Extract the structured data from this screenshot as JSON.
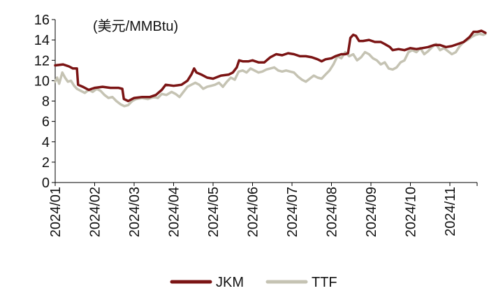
{
  "chart_data": {
    "type": "line",
    "unit_label": "(美元/MMBtu)",
    "ylim": [
      0,
      16
    ],
    "yticks": [
      "0",
      "2",
      "4",
      "6",
      "8",
      "10",
      "12",
      "14",
      "16"
    ],
    "categories": [
      "2024/01",
      "2024/02",
      "2024/03",
      "2024/04",
      "2024/05",
      "2024/06",
      "2024/07",
      "2024/08",
      "2024/09",
      "2024/10",
      "2024/11"
    ],
    "grid": false,
    "legend_position": "bottom",
    "x_start": 0,
    "x_end": 10.9,
    "colors": {
      "JKM": "#7b1414",
      "TTF": "#c5c3b3"
    },
    "series": [
      {
        "name": "JKM",
        "points": [
          [
            0.0,
            11.5
          ],
          [
            0.2,
            11.6
          ],
          [
            0.35,
            11.4
          ],
          [
            0.45,
            11.2
          ],
          [
            0.55,
            11.2
          ],
          [
            0.58,
            9.6
          ],
          [
            0.7,
            9.4
          ],
          [
            0.85,
            9.1
          ],
          [
            1.0,
            9.3
          ],
          [
            1.2,
            9.4
          ],
          [
            1.4,
            9.3
          ],
          [
            1.6,
            9.3
          ],
          [
            1.7,
            9.2
          ],
          [
            1.74,
            8.2
          ],
          [
            1.85,
            8.0
          ],
          [
            2.0,
            8.3
          ],
          [
            2.2,
            8.4
          ],
          [
            2.4,
            8.4
          ],
          [
            2.55,
            8.6
          ],
          [
            2.7,
            9.1
          ],
          [
            2.8,
            9.6
          ],
          [
            3.0,
            9.5
          ],
          [
            3.2,
            9.6
          ],
          [
            3.35,
            10.0
          ],
          [
            3.45,
            10.6
          ],
          [
            3.52,
            11.2
          ],
          [
            3.58,
            10.8
          ],
          [
            3.7,
            10.6
          ],
          [
            3.85,
            10.3
          ],
          [
            4.0,
            10.2
          ],
          [
            4.2,
            10.5
          ],
          [
            4.4,
            10.6
          ],
          [
            4.5,
            10.8
          ],
          [
            4.6,
            11.3
          ],
          [
            4.66,
            12.0
          ],
          [
            4.75,
            11.9
          ],
          [
            4.9,
            11.9
          ],
          [
            5.0,
            12.0
          ],
          [
            5.15,
            11.8
          ],
          [
            5.3,
            11.8
          ],
          [
            5.45,
            12.3
          ],
          [
            5.6,
            12.6
          ],
          [
            5.75,
            12.5
          ],
          [
            5.9,
            12.7
          ],
          [
            6.05,
            12.6
          ],
          [
            6.2,
            12.4
          ],
          [
            6.35,
            12.4
          ],
          [
            6.5,
            12.3
          ],
          [
            6.65,
            12.1
          ],
          [
            6.75,
            11.9
          ],
          [
            6.85,
            12.1
          ],
          [
            7.0,
            12.2
          ],
          [
            7.1,
            12.4
          ],
          [
            7.25,
            12.6
          ],
          [
            7.35,
            12.6
          ],
          [
            7.42,
            12.7
          ],
          [
            7.48,
            14.2
          ],
          [
            7.55,
            14.5
          ],
          [
            7.62,
            14.4
          ],
          [
            7.7,
            13.9
          ],
          [
            7.8,
            13.9
          ],
          [
            7.95,
            14.0
          ],
          [
            8.1,
            13.8
          ],
          [
            8.25,
            13.8
          ],
          [
            8.35,
            13.6
          ],
          [
            8.48,
            13.3
          ],
          [
            8.55,
            13.0
          ],
          [
            8.7,
            13.1
          ],
          [
            8.85,
            13.0
          ],
          [
            9.0,
            13.2
          ],
          [
            9.15,
            13.1
          ],
          [
            9.3,
            13.2
          ],
          [
            9.45,
            13.3
          ],
          [
            9.6,
            13.5
          ],
          [
            9.75,
            13.5
          ],
          [
            9.9,
            13.3
          ],
          [
            10.05,
            13.4
          ],
          [
            10.2,
            13.6
          ],
          [
            10.35,
            13.8
          ],
          [
            10.5,
            14.3
          ],
          [
            10.6,
            14.8
          ],
          [
            10.7,
            14.8
          ],
          [
            10.8,
            14.9
          ],
          [
            10.9,
            14.7
          ]
        ]
      },
      {
        "name": "TTF",
        "points": [
          [
            0.0,
            9.9
          ],
          [
            0.05,
            10.3
          ],
          [
            0.1,
            9.7
          ],
          [
            0.18,
            10.8
          ],
          [
            0.25,
            10.3
          ],
          [
            0.32,
            9.9
          ],
          [
            0.4,
            10.0
          ],
          [
            0.48,
            9.5
          ],
          [
            0.55,
            9.2
          ],
          [
            0.65,
            9.0
          ],
          [
            0.75,
            8.8
          ],
          [
            0.85,
            9.1
          ],
          [
            0.95,
            8.9
          ],
          [
            1.05,
            9.2
          ],
          [
            1.15,
            9.0
          ],
          [
            1.25,
            8.6
          ],
          [
            1.35,
            8.3
          ],
          [
            1.45,
            8.4
          ],
          [
            1.55,
            8.0
          ],
          [
            1.65,
            7.7
          ],
          [
            1.75,
            7.5
          ],
          [
            1.85,
            7.6
          ],
          [
            1.95,
            8.0
          ],
          [
            2.05,
            8.2
          ],
          [
            2.2,
            8.3
          ],
          [
            2.35,
            8.2
          ],
          [
            2.5,
            8.4
          ],
          [
            2.6,
            8.3
          ],
          [
            2.7,
            8.7
          ],
          [
            2.82,
            8.6
          ],
          [
            2.95,
            8.9
          ],
          [
            3.05,
            8.7
          ],
          [
            3.15,
            8.4
          ],
          [
            3.25,
            8.9
          ],
          [
            3.35,
            9.4
          ],
          [
            3.45,
            9.6
          ],
          [
            3.55,
            9.8
          ],
          [
            3.65,
            9.6
          ],
          [
            3.75,
            9.2
          ],
          [
            3.85,
            9.4
          ],
          [
            3.95,
            9.5
          ],
          [
            4.05,
            9.6
          ],
          [
            4.15,
            9.8
          ],
          [
            4.25,
            9.4
          ],
          [
            4.35,
            9.9
          ],
          [
            4.45,
            10.3
          ],
          [
            4.55,
            10.1
          ],
          [
            4.65,
            10.9
          ],
          [
            4.75,
            11.0
          ],
          [
            4.85,
            10.8
          ],
          [
            4.95,
            11.2
          ],
          [
            5.05,
            11.0
          ],
          [
            5.15,
            10.8
          ],
          [
            5.25,
            10.9
          ],
          [
            5.35,
            11.1
          ],
          [
            5.45,
            11.2
          ],
          [
            5.55,
            11.3
          ],
          [
            5.65,
            11.0
          ],
          [
            5.75,
            10.9
          ],
          [
            5.85,
            11.0
          ],
          [
            5.95,
            10.9
          ],
          [
            6.05,
            10.8
          ],
          [
            6.15,
            10.4
          ],
          [
            6.25,
            10.1
          ],
          [
            6.35,
            9.9
          ],
          [
            6.45,
            10.2
          ],
          [
            6.55,
            10.5
          ],
          [
            6.65,
            10.3
          ],
          [
            6.75,
            10.2
          ],
          [
            6.85,
            10.6
          ],
          [
            6.95,
            11.0
          ],
          [
            7.05,
            11.6
          ],
          [
            7.15,
            12.4
          ],
          [
            7.25,
            12.2
          ],
          [
            7.35,
            12.8
          ],
          [
            7.45,
            12.4
          ],
          [
            7.55,
            12.6
          ],
          [
            7.65,
            12.0
          ],
          [
            7.75,
            12.3
          ],
          [
            7.85,
            12.8
          ],
          [
            7.95,
            12.6
          ],
          [
            8.05,
            12.2
          ],
          [
            8.15,
            12.0
          ],
          [
            8.25,
            11.6
          ],
          [
            8.35,
            11.8
          ],
          [
            8.45,
            11.2
          ],
          [
            8.55,
            11.1
          ],
          [
            8.65,
            11.3
          ],
          [
            8.75,
            11.8
          ],
          [
            8.85,
            12.0
          ],
          [
            8.95,
            12.8
          ],
          [
            9.05,
            13.0
          ],
          [
            9.15,
            12.8
          ],
          [
            9.25,
            13.2
          ],
          [
            9.35,
            12.6
          ],
          [
            9.45,
            12.9
          ],
          [
            9.55,
            13.3
          ],
          [
            9.65,
            13.6
          ],
          [
            9.75,
            13.0
          ],
          [
            9.85,
            13.2
          ],
          [
            9.95,
            12.9
          ],
          [
            10.05,
            12.6
          ],
          [
            10.15,
            12.8
          ],
          [
            10.25,
            13.4
          ],
          [
            10.35,
            13.8
          ],
          [
            10.45,
            14.0
          ],
          [
            10.55,
            14.3
          ],
          [
            10.65,
            14.5
          ],
          [
            10.75,
            14.6
          ],
          [
            10.85,
            14.5
          ],
          [
            10.9,
            14.6
          ]
        ]
      }
    ]
  }
}
